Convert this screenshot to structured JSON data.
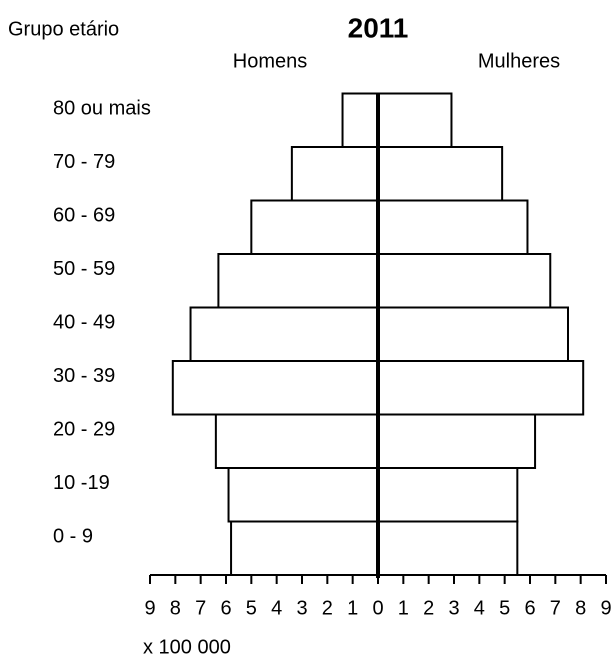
{
  "chart_data": {
    "type": "pyramid",
    "title": "2011",
    "y_label": "Grupo etário",
    "x_label": "x 100 000",
    "categories": [
      "0 - 9",
      "10 -19",
      "20 - 29",
      "30 - 39",
      "40 - 49",
      "50 - 59",
      "60 - 69",
      "70 - 79",
      "80 ou mais"
    ],
    "series": [
      {
        "name": "Homens",
        "color": "#ffffff",
        "values": [
          5.8,
          5.9,
          6.4,
          8.1,
          7.4,
          6.3,
          5.0,
          3.4,
          1.4
        ]
      },
      {
        "name": "Mulheres",
        "color": "#ffffff",
        "values": [
          5.5,
          5.5,
          6.2,
          8.1,
          7.5,
          6.8,
          5.9,
          4.9,
          2.9
        ]
      }
    ],
    "xlim": [
      -9,
      9
    ],
    "xticks": [
      {
        "value": -9,
        "label": "9"
      },
      {
        "value": -8,
        "label": "8"
      },
      {
        "value": -7,
        "label": "7"
      },
      {
        "value": -6,
        "label": "6"
      },
      {
        "value": -5,
        "label": "5"
      },
      {
        "value": -4,
        "label": "4"
      },
      {
        "value": -3,
        "label": "3"
      },
      {
        "value": -2,
        "label": "2"
      },
      {
        "value": -1,
        "label": "1"
      },
      0,
      1,
      2,
      3,
      4,
      5,
      6,
      7,
      8,
      9
    ]
  }
}
